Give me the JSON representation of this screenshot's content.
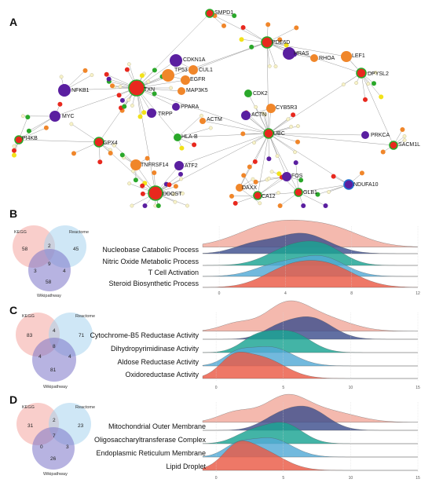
{
  "panels": {
    "a": {
      "letter": "A"
    },
    "b": {
      "letter": "B"
    },
    "c": {
      "letter": "C"
    },
    "d": {
      "letter": "D"
    }
  },
  "colors": {
    "red": "#e8281e",
    "orange": "#f0862a",
    "purple": "#5a1fa0",
    "green": "#2aa82a",
    "yellow": "#f2e21a",
    "blue": "#1e6fd0",
    "small": "#f7f2c8",
    "edge": "#9a9a9a",
    "ridge_salmon": "#f2a99c",
    "ridge_navy": "#3e4f8e",
    "ridge_teal": "#1aa392",
    "ridge_blue": "#53a9d6",
    "ridge_red": "#ea5a45",
    "venn_kegg": "#f4a6a0",
    "venn_reactome": "#a8d4ee",
    "venn_wiki": "#7b74c9"
  },
  "network": {
    "labels": [
      "SMPD1",
      "PDE6D",
      "LEF1",
      "HRAS",
      "DPYSL2",
      "RHOA",
      "CDKN1A",
      "CUL1",
      "TP53",
      "EGFR",
      "NFKB1",
      "TXN",
      "MAP3K5",
      "CDK2",
      "PPARA",
      "MYC",
      "CYB5R3",
      "ACTN",
      "ACTM",
      "UBC",
      "PI4KB",
      "GPX4",
      "HLA-B",
      "PRKCA",
      "SACM1L",
      "TNFRSF14",
      "FOS",
      "ATF2",
      "DAXX",
      "CA12",
      "GLB1",
      "NDUFA10",
      "DDOST",
      "TRPP"
    ]
  },
  "venns": {
    "b": {
      "kegg_label": "KEGG",
      "reactome_label": "Reactome",
      "wiki_label": "Wikipathway",
      "kegg_only": "58",
      "reactome_only": "45",
      "wiki_only": "58",
      "kr": "2",
      "kw": "3",
      "rw": "4",
      "all": "9"
    },
    "c": {
      "kegg_label": "KEGG",
      "reactome_label": "Reactome",
      "wiki_label": "Wikipathway",
      "kegg_only": "83",
      "reactome_only": "71",
      "wiki_only": "81",
      "kr": "4",
      "kw": "4",
      "rw": "4",
      "all": "8"
    },
    "d": {
      "kegg_label": "KEGG",
      "reactome_label": "Reactome",
      "wiki_label": "Wikipathway",
      "kegg_only": "31",
      "reactome_only": "23",
      "wiki_only": "26",
      "kr": "2",
      "kw": "0",
      "rw": "3",
      "all": "7"
    }
  },
  "chart_data": [
    {
      "type": "area",
      "panel": "B",
      "categories": [
        "Nucleobase Catabolic Process",
        "Nitric Oxide Metabolic Process",
        "T Cell Activation",
        "Steroid Biosynthetic Process"
      ],
      "x_ticks": [
        "0",
        "4",
        "8",
        "12"
      ],
      "xlim": [
        -1,
        12
      ]
    },
    {
      "type": "area",
      "panel": "C",
      "categories": [
        "Cytochrome-B5 Reductase Activity",
        "Dihydropyrimidinase Activity",
        "Aldose Reductase Activity",
        "Oxidoreductase Activity"
      ],
      "x_ticks": [
        "0",
        "5",
        "10",
        "15"
      ],
      "xlim": [
        -1,
        15
      ]
    },
    {
      "type": "area",
      "panel": "D",
      "categories": [
        "Mitochondrial Outer Membrane",
        "Oligosaccharyltransferase Complex",
        "Endoplasmic Reticulum Membrane",
        "Lipid Droplet"
      ],
      "x_ticks": [
        "0",
        "5",
        "10",
        "15"
      ],
      "xlim": [
        -1,
        15
      ]
    }
  ]
}
